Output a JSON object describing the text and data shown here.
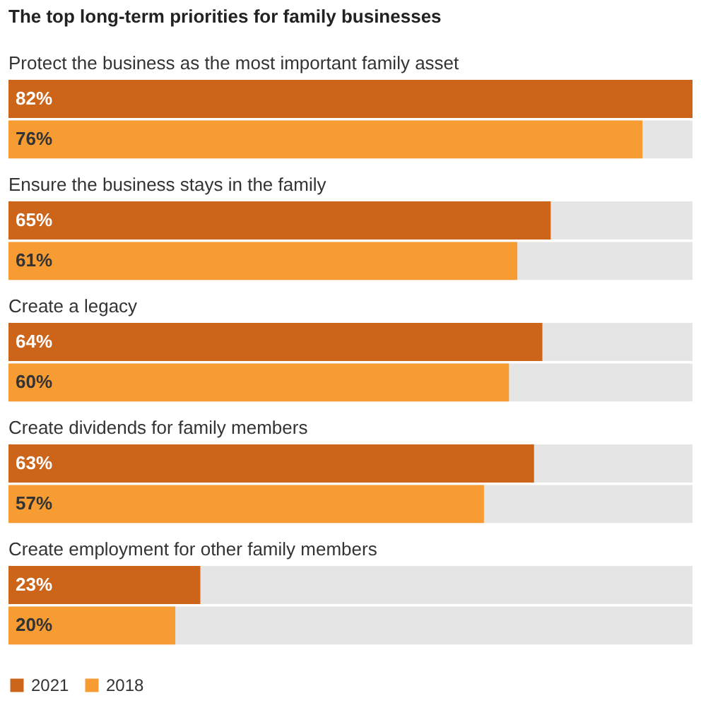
{
  "chart_data": {
    "type": "bar",
    "orientation": "horizontal",
    "title": "The top long-term priorities for family businesses",
    "categories": [
      "Protect the business as the most important family asset",
      "Ensure the business stays in the family",
      "Create a legacy",
      "Create dividends for family members",
      "Create employment for other family members"
    ],
    "series": [
      {
        "name": "2021",
        "color": "#cc641a",
        "values": [
          82,
          65,
          64,
          63,
          23
        ],
        "value_labels": [
          "82%",
          "65%",
          "64%",
          "63%",
          "23%"
        ]
      },
      {
        "name": "2018",
        "color": "#f79c33",
        "values": [
          76,
          61,
          60,
          57,
          20
        ],
        "value_labels": [
          "76%",
          "61%",
          "60%",
          "57%",
          "20%"
        ]
      }
    ],
    "xlim": [
      0,
      82
    ],
    "tick_labels": false,
    "grid": false,
    "legend": "bottom left"
  }
}
